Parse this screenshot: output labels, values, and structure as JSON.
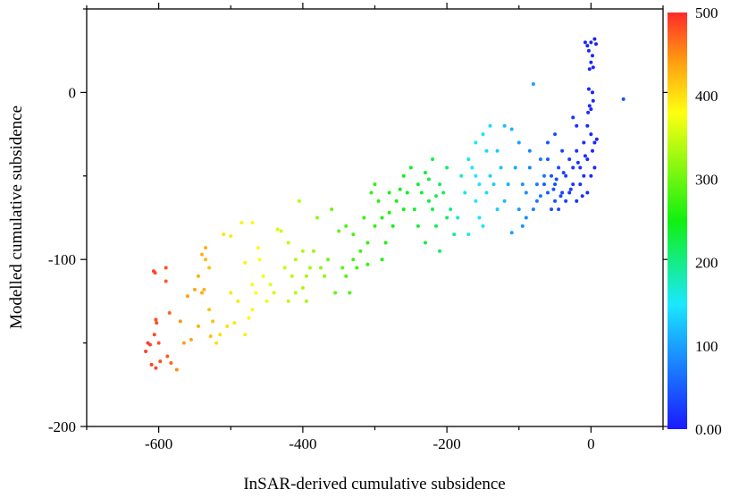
{
  "chart_data": {
    "type": "scatter",
    "title": "",
    "xlabel": "InSAR-derived cumulative subsidence",
    "ylabel": "Modelled cumulative subsidence",
    "xlim": [
      -700,
      100
    ],
    "ylim": [
      -200,
      50
    ],
    "xticks": [
      -600,
      -400,
      -200,
      0
    ],
    "xticks_minor": [
      -700,
      -500,
      -300,
      -100,
      100
    ],
    "yticks": [
      0,
      -100,
      -200
    ],
    "yticks_minor": [
      50,
      -50,
      -150
    ],
    "xtick_labels": [
      "-600",
      "-400",
      "-200",
      "0"
    ],
    "ytick_labels": [
      "0",
      "-100",
      "-200"
    ],
    "grid": false,
    "colorbar": {
      "range": [
        0,
        500
      ],
      "ticks": [
        500,
        400,
        300,
        200,
        100,
        0
      ],
      "tick_labels": [
        "500",
        "400",
        "300",
        "200",
        "100",
        "0.00"
      ],
      "stops": [
        {
          "v": 0,
          "color": "#1a1aff"
        },
        {
          "v": 100,
          "color": "#1aa0ff"
        },
        {
          "v": 150,
          "color": "#1ae8ff"
        },
        {
          "v": 250,
          "color": "#10f010"
        },
        {
          "v": 380,
          "color": "#ffff10"
        },
        {
          "v": 440,
          "color": "#ffa010"
        },
        {
          "v": 500,
          "color": "#ff2a2a"
        }
      ]
    },
    "points_format": [
      "x",
      "y",
      "color_value"
    ],
    "points": [
      [
        -607,
        -107,
        490
      ],
      [
        -605,
        -108,
        485
      ],
      [
        -590,
        -105,
        480
      ],
      [
        -615,
        -150,
        490
      ],
      [
        -612,
        -151,
        488
      ],
      [
        -606,
        -145,
        485
      ],
      [
        -603,
        -138,
        482
      ],
      [
        -600,
        -150,
        480
      ],
      [
        -610,
        -163,
        488
      ],
      [
        -604,
        -165,
        486
      ],
      [
        -598,
        -161,
        480
      ],
      [
        -590,
        -113,
        475
      ],
      [
        -585,
        -132,
        470
      ],
      [
        -588,
        -158,
        475
      ],
      [
        -583,
        -162,
        470
      ],
      [
        -618,
        -155,
        490
      ],
      [
        -604,
        -136,
        484
      ],
      [
        -560,
        -122,
        440
      ],
      [
        -570,
        -137,
        445
      ],
      [
        -575,
        -166,
        450
      ],
      [
        -550,
        -118,
        435
      ],
      [
        -545,
        -110,
        430
      ],
      [
        -540,
        -97,
        430
      ],
      [
        -535,
        -100,
        425
      ],
      [
        -530,
        -105,
        420
      ],
      [
        -535,
        -93,
        430
      ],
      [
        -540,
        -120,
        430
      ],
      [
        -545,
        -140,
        430
      ],
      [
        -555,
        -148,
        435
      ],
      [
        -565,
        -150,
        440
      ],
      [
        -525,
        -137,
        420
      ],
      [
        -528,
        -146,
        420
      ],
      [
        -530,
        -130,
        420
      ],
      [
        -537,
        -118,
        428
      ],
      [
        -510,
        -85,
        400
      ],
      [
        -500,
        -86,
        395
      ],
      [
        -485,
        -78,
        390
      ],
      [
        -470,
        -78,
        385
      ],
      [
        -480,
        -102,
        390
      ],
      [
        -470,
        -115,
        385
      ],
      [
        -465,
        -120,
        380
      ],
      [
        -490,
        -125,
        395
      ],
      [
        -495,
        -138,
        395
      ],
      [
        -505,
        -140,
        400
      ],
      [
        -515,
        -145,
        400
      ],
      [
        -520,
        -150,
        400
      ],
      [
        -475,
        -135,
        385
      ],
      [
        -460,
        -100,
        380
      ],
      [
        -455,
        -110,
        375
      ],
      [
        -470,
        -130,
        385
      ],
      [
        -500,
        -120,
        395
      ],
      [
        -480,
        -145,
        390
      ],
      [
        -450,
        -125,
        370
      ],
      [
        -445,
        -115,
        365
      ],
      [
        -462,
        -93,
        378
      ],
      [
        -435,
        -82,
        355
      ],
      [
        -430,
        -83,
        350
      ],
      [
        -420,
        -90,
        345
      ],
      [
        -410,
        -100,
        340
      ],
      [
        -415,
        -110,
        340
      ],
      [
        -425,
        -105,
        345
      ],
      [
        -400,
        -117,
        335
      ],
      [
        -395,
        -125,
        330
      ],
      [
        -405,
        -65,
        340
      ],
      [
        -440,
        -120,
        355
      ],
      [
        -390,
        -105,
        330
      ],
      [
        -385,
        -95,
        325
      ],
      [
        -380,
        -75,
        320
      ],
      [
        -375,
        -105,
        320
      ],
      [
        -370,
        -110,
        318
      ],
      [
        -395,
        -110,
        330
      ],
      [
        -400,
        -95,
        335
      ],
      [
        -420,
        -125,
        345
      ],
      [
        -410,
        -120,
        340
      ],
      [
        -360,
        -70,
        300
      ],
      [
        -350,
        -83,
        295
      ],
      [
        -345,
        -105,
        290
      ],
      [
        -340,
        -110,
        285
      ],
      [
        -330,
        -100,
        280
      ],
      [
        -320,
        -95,
        275
      ],
      [
        -310,
        -90,
        270
      ],
      [
        -300,
        -80,
        265
      ],
      [
        -290,
        -75,
        260
      ],
      [
        -280,
        -72,
        258
      ],
      [
        -295,
        -65,
        262
      ],
      [
        -300,
        -55,
        265
      ],
      [
        -305,
        -60,
        268
      ],
      [
        -270,
        -65,
        255
      ],
      [
        -265,
        -58,
        252
      ],
      [
        -285,
        -90,
        258
      ],
      [
        -325,
        -105,
        278
      ],
      [
        -335,
        -120,
        283
      ],
      [
        -355,
        -120,
        295
      ],
      [
        -365,
        -100,
        300
      ],
      [
        -315,
        -75,
        272
      ],
      [
        -275,
        -80,
        255
      ],
      [
        -260,
        -70,
        248
      ],
      [
        -290,
        -100,
        260
      ],
      [
        -340,
        -80,
        285
      ],
      [
        -310,
        -103,
        270
      ],
      [
        -330,
        -85,
        280
      ],
      [
        -280,
        -60,
        256
      ],
      [
        -250,
        -45,
        240
      ],
      [
        -240,
        -55,
        235
      ],
      [
        -235,
        -60,
        232
      ],
      [
        -230,
        -48,
        230
      ],
      [
        -225,
        -65,
        228
      ],
      [
        -220,
        -70,
        225
      ],
      [
        -215,
        -80,
        220
      ],
      [
        -210,
        -55,
        218
      ],
      [
        -205,
        -60,
        215
      ],
      [
        -200,
        -45,
        210
      ],
      [
        -195,
        -70,
        205
      ],
      [
        -190,
        -85,
        200
      ],
      [
        -245,
        -70,
        238
      ],
      [
        -255,
        -60,
        242
      ],
      [
        -260,
        -50,
        245
      ],
      [
        -220,
        -40,
        225
      ],
      [
        -230,
        -90,
        230
      ],
      [
        -210,
        -95,
        218
      ],
      [
        -200,
        -75,
        210
      ],
      [
        -240,
        -80,
        235
      ],
      [
        -225,
        -52,
        228
      ],
      [
        -215,
        -62,
        220
      ],
      [
        -180,
        -50,
        170
      ],
      [
        -170,
        -40,
        160
      ],
      [
        -165,
        -45,
        155
      ],
      [
        -160,
        -30,
        150
      ],
      [
        -150,
        -25,
        145
      ],
      [
        -140,
        -20,
        140
      ],
      [
        -130,
        -35,
        130
      ],
      [
        -125,
        -45,
        125
      ],
      [
        -120,
        -20,
        120
      ],
      [
        -110,
        -22,
        115
      ],
      [
        -175,
        -60,
        165
      ],
      [
        -160,
        -65,
        150
      ],
      [
        -155,
        -75,
        148
      ],
      [
        -145,
        -60,
        140
      ],
      [
        -135,
        -55,
        130
      ],
      [
        -185,
        -75,
        175
      ],
      [
        -170,
        -85,
        160
      ],
      [
        -150,
        -80,
        145
      ],
      [
        -140,
        -50,
        135
      ],
      [
        -120,
        -65,
        118
      ],
      [
        -115,
        -55,
        112
      ],
      [
        -105,
        -45,
        105
      ],
      [
        -100,
        -30,
        100
      ],
      [
        -80,
        5,
        100
      ],
      [
        -160,
        -50,
        150
      ],
      [
        -130,
        -70,
        130
      ],
      [
        -145,
        -35,
        138
      ],
      [
        -155,
        -55,
        146
      ],
      [
        -95,
        -55,
        90
      ],
      [
        -90,
        -60,
        85
      ],
      [
        -85,
        -45,
        80
      ],
      [
        -80,
        -70,
        75
      ],
      [
        -75,
        -65,
        72
      ],
      [
        -70,
        -40,
        70
      ],
      [
        -65,
        -50,
        68
      ],
      [
        -100,
        -70,
        95
      ],
      [
        -95,
        -80,
        90
      ],
      [
        -110,
        -84,
        100
      ],
      [
        -85,
        -35,
        82
      ],
      [
        -75,
        -55,
        72
      ],
      [
        -90,
        -75,
        85
      ],
      [
        -70,
        -62,
        70
      ],
      [
        -60,
        -60,
        45
      ],
      [
        -55,
        -50,
        40
      ],
      [
        -50,
        -55,
        38
      ],
      [
        -45,
        -45,
        35
      ],
      [
        -40,
        -60,
        30
      ],
      [
        -35,
        -50,
        28
      ],
      [
        -30,
        -40,
        25
      ],
      [
        -25,
        -55,
        22
      ],
      [
        -20,
        -35,
        20
      ],
      [
        -15,
        -45,
        18
      ],
      [
        -10,
        -30,
        15
      ],
      [
        -5,
        -40,
        12
      ],
      [
        0,
        -25,
        10
      ],
      [
        5,
        -30,
        8
      ],
      [
        -50,
        -65,
        38
      ],
      [
        -45,
        -70,
        35
      ],
      [
        -55,
        -70,
        40
      ],
      [
        -60,
        -40,
        45
      ],
      [
        -30,
        -60,
        25
      ],
      [
        -20,
        -65,
        20
      ],
      [
        -10,
        -50,
        15
      ],
      [
        0,
        -50,
        10
      ],
      [
        5,
        -45,
        8
      ],
      [
        -5,
        -60,
        12
      ],
      [
        -40,
        -35,
        30
      ],
      [
        -65,
        -55,
        50
      ],
      [
        -35,
        -65,
        28
      ],
      [
        -25,
        -45,
        22
      ],
      [
        -15,
        -55,
        18
      ],
      [
        -5,
        -20,
        12
      ],
      [
        2,
        -35,
        10
      ],
      [
        8,
        -28,
        6
      ],
      [
        -48,
        -52,
        36
      ],
      [
        -38,
        -48,
        30
      ],
      [
        -28,
        -58,
        24
      ],
      [
        -18,
        -42,
        18
      ],
      [
        -8,
        -38,
        14
      ],
      [
        -52,
        -58,
        40
      ],
      [
        -42,
        -62,
        32
      ],
      [
        -12,
        -62,
        16
      ],
      [
        -60,
        -30,
        45
      ],
      [
        -50,
        -25,
        40
      ],
      [
        -5,
        28,
        10
      ],
      [
        0,
        30,
        8
      ],
      [
        5,
        32,
        6
      ],
      [
        -3,
        25,
        10
      ],
      [
        2,
        22,
        8
      ],
      [
        7,
        29,
        6
      ],
      [
        -8,
        30,
        12
      ],
      [
        0,
        18,
        10
      ],
      [
        -2,
        14,
        10
      ],
      [
        3,
        15,
        8
      ],
      [
        -2,
        -8,
        12
      ],
      [
        0,
        -10,
        10
      ],
      [
        3,
        -5,
        8
      ],
      [
        -4,
        -12,
        12
      ],
      [
        2,
        0,
        8
      ],
      [
        -3,
        2,
        10
      ],
      [
        45,
        -4,
        40
      ],
      [
        -20,
        -20,
        18
      ],
      [
        -25,
        -15,
        20
      ]
    ]
  }
}
